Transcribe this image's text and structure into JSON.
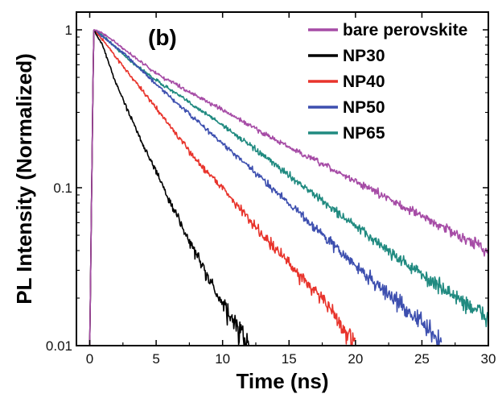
{
  "chart_data": {
    "type": "line",
    "panel_label": "(b)",
    "xlabel": "Time (ns)",
    "ylabel": "PL Intensity (Normalized)",
    "xlim": [
      -1,
      30
    ],
    "ylim": [
      0.01,
      1
    ],
    "yscale": "log",
    "grid": false,
    "legend_position": "top-right",
    "x_ticks": [
      {
        "value": 0,
        "label": "0"
      },
      {
        "value": 5,
        "label": "5"
      },
      {
        "value": 10,
        "label": "10"
      },
      {
        "value": 15,
        "label": "15"
      },
      {
        "value": 20,
        "label": "20"
      },
      {
        "value": 25,
        "label": "25"
      },
      {
        "value": 30,
        "label": "30"
      }
    ],
    "y_ticks": [
      {
        "value": 0.01,
        "label": "0.01"
      },
      {
        "value": 0.1,
        "label": "0.1"
      },
      {
        "value": 1,
        "label": "1"
      }
    ],
    "series": [
      {
        "name": "bare perovskite",
        "color": "#a64ca6",
        "x": [
          0,
          0.3,
          1,
          3,
          5,
          10,
          15,
          20,
          25,
          30
        ],
        "y": [
          0.01,
          1,
          0.95,
          0.71,
          0.53,
          0.31,
          0.18,
          0.11,
          0.066,
          0.04
        ]
      },
      {
        "name": "NP30",
        "color": "#000000",
        "x": [
          0,
          0.3,
          1,
          2,
          4,
          6,
          8,
          10,
          12
        ],
        "y": [
          0.01,
          1,
          0.79,
          0.45,
          0.19,
          0.083,
          0.038,
          0.018,
          0.01
        ]
      },
      {
        "name": "NP40",
        "color": "#e8342c",
        "x": [
          0,
          0.3,
          1,
          3,
          5,
          8,
          10,
          12,
          15,
          17.5,
          20
        ],
        "y": [
          0.01,
          1,
          0.86,
          0.52,
          0.32,
          0.15,
          0.1,
          0.063,
          0.033,
          0.02,
          0.01
        ]
      },
      {
        "name": "NP50",
        "color": "#3d4faf",
        "x": [
          0,
          0.3,
          1,
          3,
          5,
          10,
          15,
          20,
          25,
          26.5
        ],
        "y": [
          0.01,
          1,
          0.9,
          0.66,
          0.45,
          0.19,
          0.08,
          0.032,
          0.014,
          0.01
        ]
      },
      {
        "name": "NP65",
        "color": "#208a80",
        "x": [
          0,
          0.3,
          1,
          3,
          5,
          10,
          15,
          20,
          25,
          30
        ],
        "y": [
          0.01,
          1,
          0.92,
          0.64,
          0.48,
          0.25,
          0.12,
          0.057,
          0.028,
          0.015
        ]
      }
    ]
  }
}
